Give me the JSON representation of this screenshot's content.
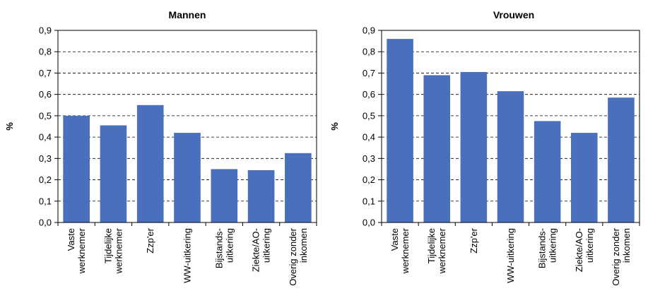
{
  "chart_data": [
    {
      "type": "bar",
      "title": "Mannen",
      "ylabel": "%",
      "ylim": [
        0,
        0.9
      ],
      "yticks": [
        "0,0",
        "0,1",
        "0,2",
        "0,3",
        "0,4",
        "0,5",
        "0,6",
        "0,7",
        "0,8",
        "0,9"
      ],
      "grid": "dashed horizontal",
      "categories": [
        [
          "Vaste",
          "werknemer"
        ],
        [
          "Tijdelijke",
          "werknemer"
        ],
        [
          "Zzp'er"
        ],
        [
          "WW-uitkering"
        ],
        [
          "Bijstands-",
          "uitkering"
        ],
        [
          "Ziekte/AO-",
          "uitkering"
        ],
        [
          "Overig zonder",
          "inkomen"
        ]
      ],
      "values": [
        0.5,
        0.455,
        0.55,
        0.42,
        0.25,
        0.245,
        0.325
      ],
      "bar_color": "#4a6fbd"
    },
    {
      "type": "bar",
      "title": "Vrouwen",
      "ylabel": "%",
      "ylim": [
        0,
        0.9
      ],
      "yticks": [
        "0,0",
        "0,1",
        "0,2",
        "0,3",
        "0,4",
        "0,5",
        "0,6",
        "0,7",
        "0,8",
        "0,9"
      ],
      "grid": "dashed horizontal",
      "categories": [
        [
          "Vaste",
          "werknemer"
        ],
        [
          "Tijdelijke",
          "werknemer"
        ],
        [
          "Zzp'er"
        ],
        [
          "WW-uitkering"
        ],
        [
          "Bijstands-",
          "uitkering"
        ],
        [
          "Ziekte/AO-",
          "uitkering"
        ],
        [
          "Overig zonder",
          "inkomen"
        ]
      ],
      "values": [
        0.86,
        0.69,
        0.705,
        0.615,
        0.475,
        0.42,
        0.585
      ],
      "bar_color": "#4a6fbd"
    }
  ]
}
